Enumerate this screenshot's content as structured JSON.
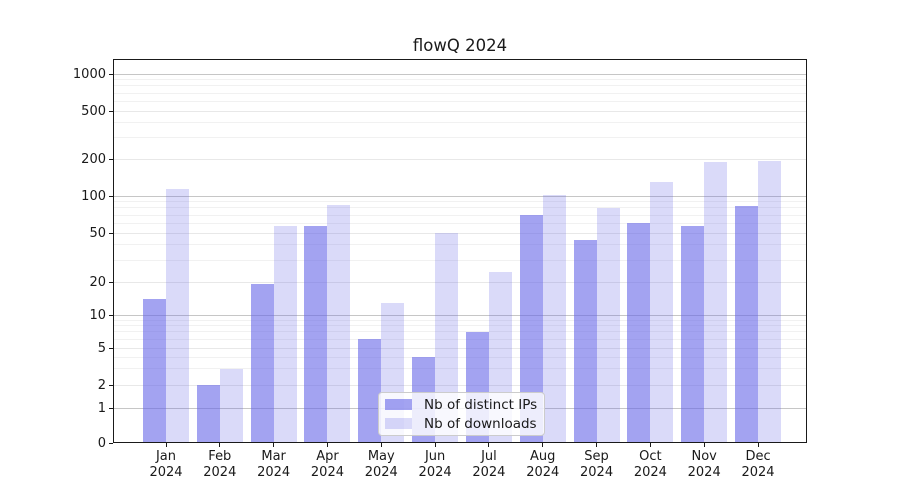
{
  "title": "flowQ 2024",
  "legend": {
    "items": [
      {
        "label": "Nb of distinct IPs",
        "color": "rgba(102,102,232,0.60)"
      },
      {
        "label": "Nb of downloads",
        "color": "rgba(102,102,232,0.24)"
      }
    ],
    "position": "lower center-ish (inside axes)"
  },
  "axes": {
    "y_ticks": [
      1000,
      500,
      200,
      100,
      50,
      20,
      10,
      5,
      2,
      1,
      0
    ],
    "x_tick_months": [
      "Jan",
      "Feb",
      "Mar",
      "Apr",
      "May",
      "Jun",
      "Jul",
      "Aug",
      "Sep",
      "Oct",
      "Nov",
      "Dec"
    ],
    "x_tick_year": "2024"
  },
  "chart_data": {
    "type": "bar",
    "title": "flowQ 2024",
    "categories": [
      "Jan 2024",
      "Feb 2024",
      "Mar 2024",
      "Apr 2024",
      "May 2024",
      "Jun 2024",
      "Jul 2024",
      "Aug 2024",
      "Sep 2024",
      "Oct 2024",
      "Nov 2024",
      "Dec 2024"
    ],
    "series": [
      {
        "name": "Nb of distinct IPs",
        "values": [
          14,
          2,
          19,
          57,
          6,
          4,
          7,
          70,
          44,
          60,
          57,
          83
        ]
      },
      {
        "name": "Nb of downloads",
        "values": [
          114,
          3,
          57,
          85,
          13,
          50,
          24,
          101,
          80,
          130,
          190,
          193
        ]
      }
    ],
    "xlabel": "",
    "ylabel": "",
    "yscale": "symlog",
    "ylim": [
      0,
      1000
    ],
    "yticks": [
      0,
      1,
      2,
      5,
      10,
      20,
      50,
      100,
      200,
      500,
      1000
    ],
    "grid": "both",
    "legend_position": "lower center"
  },
  "colors": {
    "bar_base": "#6666e8",
    "series1_fill": "rgba(102,102,232,0.60)",
    "series2_fill": "rgba(102,102,232,0.24)",
    "grid_major": "#c6c6c6",
    "grid_sub": "#e8e8e8",
    "grid_minor": "#f1f1f1",
    "spine": "#1a1a1a",
    "text": "#1a1a1a"
  }
}
